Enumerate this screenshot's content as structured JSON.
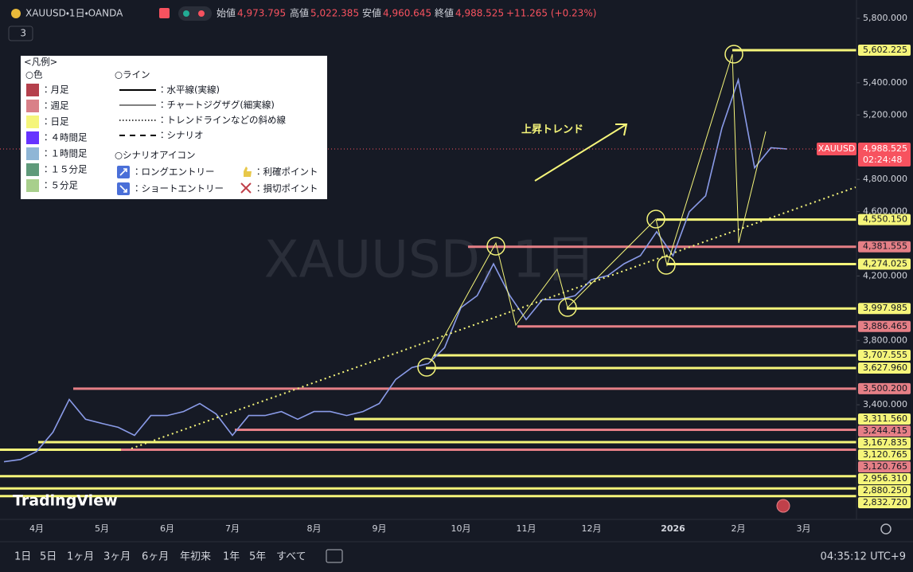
{
  "header": {
    "symbol": "XAUUSD・1日・OANDA",
    "open_label": "始値",
    "open": "4,973.795",
    "high_label": "高値",
    "high": "5,022.385",
    "low_label": "安値",
    "low": "4,960.645",
    "close_label": "終値",
    "close": "4,988.525",
    "change": "+11.265 (+0.23%)",
    "indicators": "3"
  },
  "watermark": "XAUUSD, 1日",
  "logo": "TradingView",
  "annotation": "上昇トレンド",
  "legend": {
    "title": "<凡例>",
    "colors_heading": "○色",
    "colors": [
      {
        "label": "：月足",
        "color": "#b5404c"
      },
      {
        "label": "：週足",
        "color": "#d98088"
      },
      {
        "label": "：日足",
        "color": "#f5f57a"
      },
      {
        "label": "：４時間足",
        "color": "#6633ff"
      },
      {
        "label": "：１時間足",
        "color": "#8fb6d6"
      },
      {
        "label": "：１５分足",
        "color": "#5f9a7a"
      },
      {
        "label": "：５分足",
        "color": "#a8cf8c"
      }
    ],
    "lines_heading": "○ライン",
    "lines": [
      "：水平線(実線)",
      "：チャートジグザグ(細実線)",
      "：トレンドラインなどの斜め線",
      "：シナリオ"
    ],
    "icons_heading": "○シナリオアイコン",
    "icons": [
      "：ロングエントリー",
      "：ショートエントリー",
      "：利確ポイント",
      "：損切ポイント"
    ]
  },
  "chart_data": {
    "type": "line",
    "categories": [
      null,
      null,
      "4月",
      null,
      null,
      null,
      "5月",
      null,
      null,
      null,
      "6月",
      null,
      null,
      null,
      "7月",
      null,
      null,
      null,
      null,
      "8月",
      null,
      null,
      null,
      "9月",
      null,
      null,
      null,
      null,
      "10月",
      null,
      null,
      null,
      "11月",
      null,
      null,
      null,
      "12月",
      null,
      null,
      null,
      null,
      "2026",
      null,
      null,
      null,
      "2月",
      null,
      null,
      null,
      "3月",
      null,
      null,
      null
    ],
    "values": [
      3046,
      3060,
      3110,
      3230,
      3433,
      3310,
      3284,
      3260,
      3210,
      3333,
      3333,
      3358,
      3408,
      3343,
      3210,
      3333,
      3333,
      3358,
      3310,
      3358,
      3358,
      3333,
      3358,
      3408,
      3557,
      3631,
      3656,
      3755,
      4003,
      4078,
      4276,
      4078,
      3929,
      4053,
      4053,
      4078,
      4177,
      4202,
      4276,
      4326,
      4475,
      4326,
      4599,
      4698,
      5120,
      5418,
      4872,
      4996,
      4988.525,
      null,
      null,
      null,
      null
    ],
    "color": "#8a9be8",
    "ylim": [
      2688,
      5914
    ],
    "yticks": [
      {
        "value": 5800,
        "label": "5,800.000"
      },
      {
        "value": 5400,
        "label": "5,400.000"
      },
      {
        "value": 5200,
        "label": "5,200.000"
      },
      {
        "value": 4800,
        "label": "4,800.000"
      },
      {
        "value": 4600,
        "label": "4,600.000"
      },
      {
        "value": 4200,
        "label": "4,200.000"
      },
      {
        "value": 3800,
        "label": "3,800.000"
      },
      {
        "value": 3400,
        "label": "3,400.000"
      }
    ],
    "current": {
      "symbol": "XAUUSD",
      "value": 4988.525,
      "label": "4,988.525",
      "countdown": "02:24:48",
      "color": "#f7525f"
    },
    "levels": [
      {
        "value": 5602.225,
        "label": "5,602.225",
        "color": "#f5f57a"
      },
      {
        "value": 4550.15,
        "label": "4,550.150",
        "color": "#f5f57a"
      },
      {
        "value": 4381.555,
        "label": "4,381.555",
        "color": "#e57f86"
      },
      {
        "value": 4274.025,
        "label": "4,274.025",
        "color": "#f5f57a"
      },
      {
        "value": 3997.985,
        "label": "3,997.985",
        "color": "#f5f57a"
      },
      {
        "value": 3886.465,
        "label": "3,886.465",
        "color": "#e57f86"
      },
      {
        "value": 3707.555,
        "label": "3,707.555",
        "color": "#f5f57a"
      },
      {
        "value": 3627.96,
        "label": "3,627.960",
        "color": "#f5f57a"
      },
      {
        "value": 3500.2,
        "label": "3,500.200",
        "color": "#e57f86"
      },
      {
        "value": 3311.56,
        "label": "3,311.560",
        "color": "#f5f57a"
      },
      {
        "value": 3244.415,
        "label": "3,244.415",
        "color": "#e57f86"
      },
      {
        "value": 3167.835,
        "label": "3,167.835",
        "color": "#f5f57a"
      },
      {
        "value": 3120.765,
        "label": "3,120.765",
        "color": "#f5f57a"
      },
      {
        "value": 3120.765,
        "label": "3,120.765",
        "color": "#e57f86"
      },
      {
        "value": 2956.31,
        "label": "2,956.310",
        "color": "#f5f57a"
      },
      {
        "value": 2880.25,
        "label": "2,880.250",
        "color": "#f5f57a"
      },
      {
        "value": 2832.72,
        "label": "2,832.720",
        "color": "#f5f57a"
      }
    ]
  },
  "toolbar": {
    "ranges": [
      "1日",
      "5日",
      "1ヶ月",
      "3ヶ月",
      "6ヶ月",
      "年初来",
      "1年",
      "5年",
      "すべて"
    ],
    "clock": "04:35:12 UTC+9"
  }
}
